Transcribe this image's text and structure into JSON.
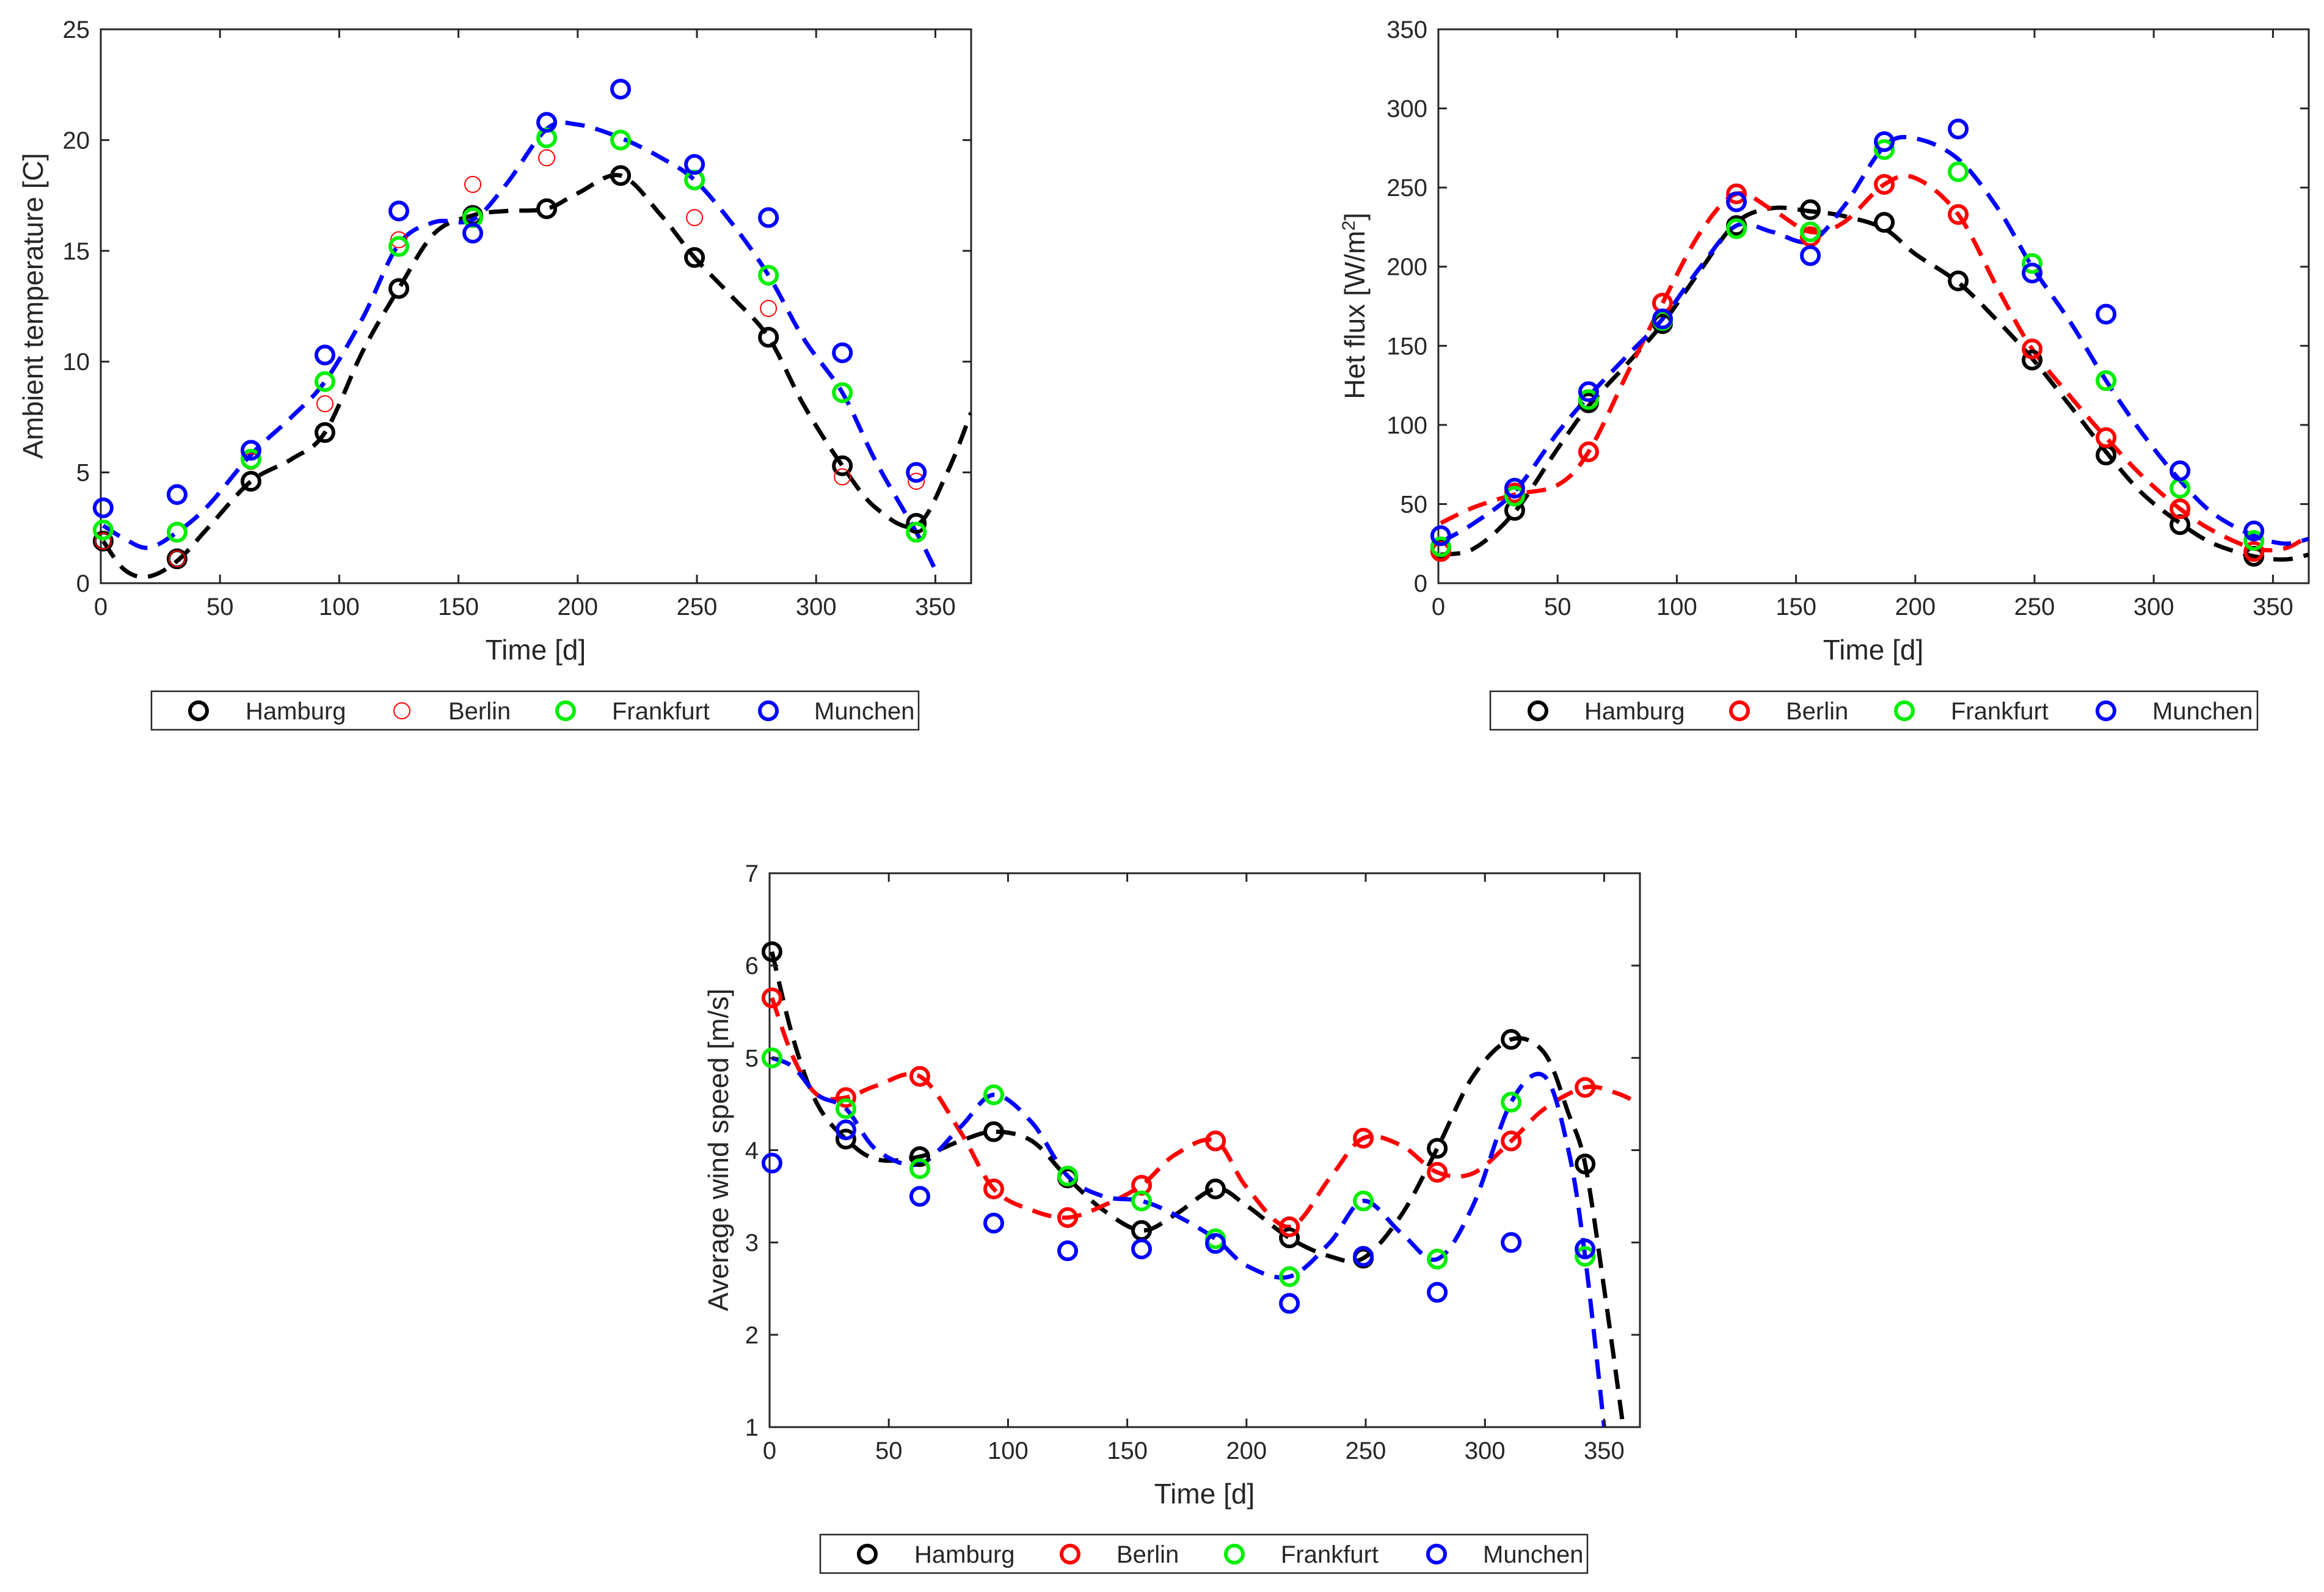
{
  "colors": {
    "Hamburg": "#000000",
    "Berlin": "#ff0000",
    "Frankfurt": "#00ee00",
    "Munchen": "#0000ff",
    "axis": "#262626"
  },
  "chart_data": [
    {
      "type": "scatter",
      "title": "",
      "xlabel": "Time [d]",
      "ylabel": "Ambient temperature [C]",
      "xlim": [
        0,
        365
      ],
      "ylim": [
        0,
        25
      ],
      "xticks": [
        0,
        50,
        100,
        150,
        200,
        250,
        300,
        350
      ],
      "yticks": [
        0,
        5,
        10,
        15,
        20,
        25
      ],
      "grid": false,
      "legend_position": "bottom",
      "legend": [
        "Hamburg",
        "Berlin",
        "Frankfurt",
        "Munchen"
      ],
      "x": [
        1,
        32,
        63,
        94,
        125,
        156,
        187,
        218,
        249,
        280,
        311,
        342
      ],
      "series": [
        {
          "name": "Hamburg",
          "values": [
            1.9,
            1.1,
            4.6,
            6.8,
            13.3,
            16.6,
            16.9,
            18.4,
            14.7,
            11.1,
            5.3,
            2.7
          ],
          "marker": "thick"
        },
        {
          "name": "Berlin",
          "values": [
            1.9,
            1.1,
            5.5,
            8.1,
            15.5,
            18.0,
            19.2,
            20.0,
            16.5,
            12.4,
            4.8,
            4.6
          ],
          "marker": "thin"
        },
        {
          "name": "Frankfurt",
          "values": [
            2.4,
            2.3,
            5.6,
            9.1,
            15.2,
            16.5,
            20.1,
            20.0,
            18.2,
            13.9,
            8.6,
            2.3
          ],
          "marker": "thick"
        },
        {
          "name": "Munchen",
          "values": [
            3.4,
            4.0,
            6.0,
            10.3,
            16.8,
            15.8,
            20.8,
            22.3,
            18.9,
            16.5,
            10.4,
            5.0
          ],
          "marker": "thick"
        }
      ],
      "fits": [
        {
          "name": "Hamburg",
          "x": [
            1,
            10,
            20,
            32,
            45,
            63,
            80,
            94,
            110,
            125,
            140,
            156,
            170,
            187,
            200,
            218,
            235,
            249,
            265,
            280,
            295,
            311,
            325,
            342,
            355,
            365
          ],
          "y": [
            1.9,
            0.6,
            0.3,
            1.0,
            2.5,
            4.6,
            5.6,
            6.8,
            10.5,
            13.3,
            15.8,
            16.6,
            16.8,
            16.9,
            17.6,
            18.4,
            16.6,
            14.7,
            12.9,
            11.1,
            8.0,
            5.3,
            3.4,
            2.6,
            5.0,
            7.7
          ]
        },
        {
          "name": "Munchen",
          "x": [
            1,
            10,
            20,
            32,
            45,
            63,
            80,
            94,
            110,
            125,
            140,
            156,
            170,
            187,
            200,
            218,
            235,
            249,
            265,
            280,
            295,
            311,
            325,
            342,
            350
          ],
          "y": [
            2.6,
            2.0,
            1.6,
            2.3,
            3.5,
            5.8,
            7.5,
            9.1,
            12.0,
            15.3,
            16.3,
            16.4,
            18.0,
            20.5,
            20.7,
            20.1,
            19.2,
            18.2,
            16.2,
            13.9,
            11.0,
            8.6,
            5.5,
            2.3,
            0.6
          ]
        }
      ]
    },
    {
      "type": "scatter",
      "title": "",
      "xlabel": "Time [d]",
      "ylabel_main": "Het flux [W/m",
      "ylabel_sup": "2",
      "ylabel_end": "]",
      "xlim": [
        0,
        365
      ],
      "ylim": [
        0,
        350
      ],
      "xticks": [
        0,
        50,
        100,
        150,
        200,
        250,
        300,
        350
      ],
      "yticks": [
        0,
        50,
        100,
        150,
        200,
        250,
        300,
        350
      ],
      "grid": false,
      "legend_position": "bottom",
      "legend": [
        "Hamburg",
        "Berlin",
        "Frankfurt",
        "Munchen"
      ],
      "x": [
        1,
        32,
        63,
        94,
        125,
        156,
        187,
        218,
        249,
        280,
        311,
        342
      ],
      "series": [
        {
          "name": "Hamburg",
          "values": [
            21,
            46,
            114,
            164,
            226,
            236,
            228,
            191,
            141,
            81,
            37,
            17
          ]
        },
        {
          "name": "Berlin",
          "values": [
            20,
            57,
            83,
            177,
            246,
            219,
            252,
            233,
            148,
            92,
            47,
            20
          ]
        },
        {
          "name": "Frankfurt",
          "values": [
            23,
            55,
            116,
            166,
            224,
            222,
            274,
            260,
            202,
            128,
            60,
            27
          ]
        },
        {
          "name": "Munchen",
          "values": [
            30,
            60,
            121,
            167,
            241,
            207,
            279,
            287,
            196,
            170,
            71,
            33
          ]
        }
      ],
      "fits": [
        {
          "name": "Hamburg",
          "x": [
            1,
            15,
            32,
            50,
            63,
            80,
            94,
            110,
            125,
            140,
            156,
            170,
            187,
            200,
            218,
            235,
            249,
            265,
            280,
            295,
            311,
            325,
            342,
            355,
            365
          ],
          "y": [
            18,
            22,
            45,
            85,
            112,
            140,
            164,
            198,
            228,
            237,
            235,
            232,
            224,
            208,
            190,
            165,
            142,
            112,
            83,
            57,
            38,
            25,
            17,
            15,
            18
          ]
        },
        {
          "name": "Berlin",
          "x": [
            1,
            15,
            32,
            50,
            63,
            80,
            94,
            110,
            125,
            140,
            156,
            170,
            187,
            200,
            218,
            235,
            249,
            265,
            280,
            295,
            311,
            325,
            342,
            355,
            365
          ],
          "y": [
            38,
            48,
            56,
            62,
            83,
            135,
            177,
            222,
            246,
            236,
            222,
            228,
            252,
            256,
            233,
            185,
            148,
            118,
            92,
            68,
            47,
            33,
            22,
            22,
            30
          ]
        },
        {
          "name": "Munchen",
          "x": [
            1,
            15,
            32,
            50,
            63,
            80,
            94,
            110,
            125,
            140,
            156,
            170,
            187,
            200,
            218,
            235,
            249,
            265,
            280,
            295,
            311,
            325,
            342,
            355,
            365
          ],
          "y": [
            26,
            38,
            58,
            95,
            118,
            145,
            167,
            200,
            226,
            222,
            216,
            238,
            276,
            281,
            268,
            236,
            200,
            165,
            128,
            95,
            65,
            44,
            30,
            25,
            28
          ]
        }
      ]
    },
    {
      "type": "scatter",
      "title": "",
      "xlabel": "Time [d]",
      "ylabel": "Average wind speed [m/s]",
      "xlim": [
        0,
        365
      ],
      "ylim": [
        1,
        7
      ],
      "xticks": [
        0,
        50,
        100,
        150,
        200,
        250,
        300,
        350
      ],
      "yticks": [
        1,
        2,
        3,
        4,
        5,
        6,
        7
      ],
      "grid": false,
      "legend_position": "bottom",
      "legend": [
        "Hamburg",
        "Berlin",
        "Frankfurt",
        "Munchen"
      ],
      "x": [
        1,
        32,
        63,
        94,
        125,
        156,
        187,
        218,
        249,
        280,
        311,
        342
      ],
      "series": [
        {
          "name": "Hamburg",
          "values": [
            6.15,
            4.12,
            3.93,
            4.2,
            3.7,
            3.13,
            3.58,
            3.05,
            2.83,
            4.02,
            5.2,
            3.85
          ]
        },
        {
          "name": "Berlin",
          "values": [
            5.65,
            4.57,
            4.8,
            3.58,
            3.27,
            3.62,
            4.1,
            3.17,
            4.13,
            3.76,
            4.1,
            4.68
          ]
        },
        {
          "name": "Frankfurt",
          "values": [
            5.0,
            4.45,
            3.8,
            4.6,
            3.72,
            3.45,
            3.04,
            2.63,
            3.45,
            2.82,
            4.52,
            2.85
          ]
        },
        {
          "name": "Munchen",
          "values": [
            3.86,
            4.22,
            3.5,
            3.21,
            2.91,
            2.93,
            2.99,
            2.34,
            2.85,
            2.46,
            3.0,
            2.93
          ]
        }
      ],
      "fits": [
        {
          "name": "Hamburg",
          "x": [
            1,
            10,
            20,
            32,
            45,
            63,
            80,
            94,
            110,
            125,
            140,
            156,
            170,
            187,
            200,
            218,
            235,
            249,
            265,
            280,
            295,
            311,
            325,
            335,
            342,
            350,
            358
          ],
          "y": [
            6.15,
            5.2,
            4.5,
            4.12,
            3.9,
            3.93,
            4.1,
            4.2,
            4.1,
            3.7,
            3.35,
            3.13,
            3.3,
            3.58,
            3.4,
            3.05,
            2.85,
            2.83,
            3.3,
            4.02,
            4.8,
            5.2,
            5.05,
            4.4,
            3.85,
            2.5,
            1.0
          ]
        },
        {
          "name": "Berlin",
          "x": [
            1,
            10,
            20,
            32,
            45,
            63,
            80,
            94,
            110,
            125,
            140,
            156,
            170,
            187,
            200,
            218,
            235,
            249,
            265,
            280,
            295,
            311,
            325,
            342,
            355,
            365
          ],
          "y": [
            5.65,
            5.0,
            4.6,
            4.57,
            4.7,
            4.8,
            4.2,
            3.58,
            3.35,
            3.27,
            3.4,
            3.62,
            3.95,
            4.1,
            3.6,
            3.17,
            3.7,
            4.13,
            4.05,
            3.76,
            3.75,
            4.1,
            4.45,
            4.68,
            4.62,
            4.5
          ]
        },
        {
          "name": "Munchen",
          "x": [
            1,
            10,
            20,
            32,
            45,
            63,
            80,
            94,
            110,
            125,
            140,
            156,
            170,
            187,
            200,
            218,
            235,
            249,
            265,
            280,
            295,
            311,
            325,
            335,
            342,
            350
          ],
          "y": [
            5.0,
            4.9,
            4.6,
            4.45,
            4.0,
            3.85,
            4.25,
            4.6,
            4.3,
            3.72,
            3.5,
            3.45,
            3.3,
            3.04,
            2.75,
            2.63,
            3.0,
            3.45,
            3.1,
            2.82,
            3.4,
            4.52,
            4.8,
            4.0,
            2.85,
            1.0
          ]
        }
      ]
    }
  ]
}
